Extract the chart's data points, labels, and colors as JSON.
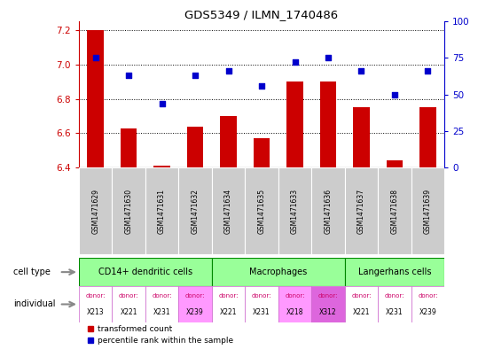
{
  "title": "GDS5349 / ILMN_1740486",
  "samples": [
    "GSM1471629",
    "GSM1471630",
    "GSM1471631",
    "GSM1471632",
    "GSM1471634",
    "GSM1471635",
    "GSM1471633",
    "GSM1471636",
    "GSM1471637",
    "GSM1471638",
    "GSM1471639"
  ],
  "bar_values": [
    7.2,
    6.63,
    6.41,
    6.64,
    6.7,
    6.57,
    6.9,
    6.9,
    6.75,
    6.44,
    6.75
  ],
  "scatter_values": [
    75,
    63,
    44,
    63,
    66,
    56,
    72,
    75,
    66,
    50,
    66
  ],
  "ylim_left": [
    6.4,
    7.25
  ],
  "ylim_right": [
    0,
    100
  ],
  "yticks_left": [
    6.4,
    6.6,
    6.8,
    7.0,
    7.2
  ],
  "yticks_right": [
    0,
    25,
    50,
    75,
    100
  ],
  "cell_types": [
    {
      "label": "CD14+ dendritic cells",
      "start": 0,
      "end": 4,
      "color": "#99ff99"
    },
    {
      "label": "Macrophages",
      "start": 4,
      "end": 8,
      "color": "#99ff99"
    },
    {
      "label": "Langerhans cells",
      "start": 8,
      "end": 11,
      "color": "#99ff99"
    }
  ],
  "individuals": [
    {
      "donor": "X213",
      "color": "#ffffff"
    },
    {
      "donor": "X221",
      "color": "#ffffff"
    },
    {
      "donor": "X231",
      "color": "#ffffff"
    },
    {
      "donor": "X239",
      "color": "#ff99ff"
    },
    {
      "donor": "X221",
      "color": "#ffffff"
    },
    {
      "donor": "X231",
      "color": "#ffffff"
    },
    {
      "donor": "X218",
      "color": "#ff99ff"
    },
    {
      "donor": "X312",
      "color": "#dd66dd"
    },
    {
      "donor": "X221",
      "color": "#ffffff"
    },
    {
      "donor": "X231",
      "color": "#ffffff"
    },
    {
      "donor": "X239",
      "color": "#ffffff"
    }
  ],
  "bar_color": "#cc0000",
  "scatter_color": "#0000cc",
  "dotted_line_color": "#000000",
  "tick_label_color_left": "#cc0000",
  "tick_label_color_right": "#0000cc",
  "bar_baseline": 6.4,
  "sample_bg_color": "#cccccc",
  "cell_type_border_color": "#008800",
  "indiv_border_color": "#cc66cc",
  "donor_label_color": "#cc0066",
  "left_label_color": "#000000",
  "arrow_color": "#888888"
}
